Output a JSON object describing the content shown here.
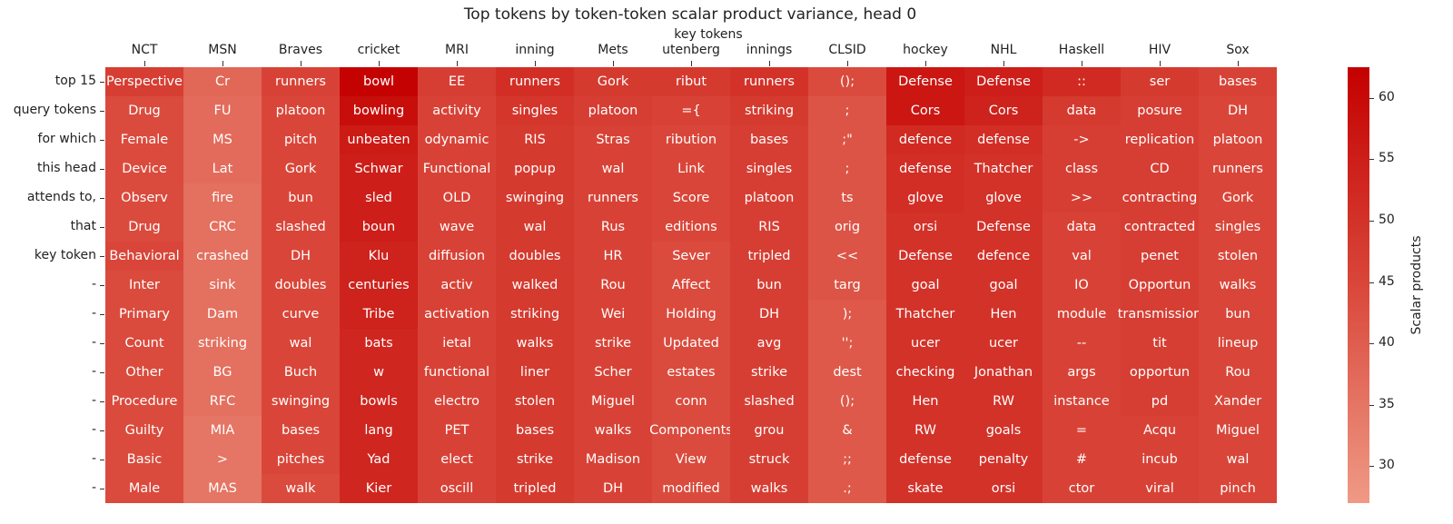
{
  "chart_data": {
    "type": "heatmap",
    "title": "Top tokens by token-token scalar product variance, head 0",
    "xlabel": "key tokens",
    "ylabel_lines": [
      "top 15",
      "query tokens",
      "for which",
      "this head",
      "attends to,",
      "that",
      "key token",
      "-",
      "-",
      "-",
      "-",
      "-",
      "-",
      "-",
      "-"
    ],
    "columns": [
      "NCT",
      "MSN",
      "Braves",
      "cricket",
      "MRI",
      "inning",
      "Mets",
      "utenberg",
      "innings",
      "CLSID",
      "hockey",
      "NHL",
      "Haskell",
      "HIV",
      "Sox"
    ],
    "cells": [
      [
        "Perspective",
        "Drug",
        "Female",
        "Device",
        "Observ",
        "Drug",
        "Behavioral",
        "Inter",
        "Primary",
        "Count",
        "Other",
        "Procedure",
        "Guilty",
        "Basic",
        "Male"
      ],
      [
        "Cr",
        "FU",
        "MS",
        "Lat",
        "fire",
        "CRC",
        "crashed",
        "sink",
        "Dam",
        "striking",
        "BG",
        "RFC",
        "MIA",
        ">",
        "MAS"
      ],
      [
        "runners",
        "platoon",
        "pitch",
        "Gork",
        "bun",
        "slashed",
        "DH",
        "doubles",
        "curve",
        "wal",
        "Buch",
        "swinging",
        "bases",
        "pitches",
        "walk"
      ],
      [
        "bowl",
        "bowling",
        "unbeaten",
        "Schwar",
        "sled",
        "boun",
        "Klu",
        "centuries",
        "Tribe",
        "bats",
        "w",
        "bowls",
        "lang",
        "Yad",
        "Kier"
      ],
      [
        "EE",
        "activity",
        "odynamic",
        "Functional",
        "OLD",
        "wave",
        "diffusion",
        "activ",
        "activation",
        "ietal",
        "functional",
        "electro",
        "PET",
        "elect",
        "oscill"
      ],
      [
        "runners",
        "singles",
        "RIS",
        "popup",
        "swinging",
        "wal",
        "doubles",
        "walked",
        "striking",
        "walks",
        "liner",
        "stolen",
        "bases",
        "strike",
        "tripled"
      ],
      [
        "Gork",
        "platoon",
        "Stras",
        "wal",
        "runners",
        "Rus",
        "HR",
        "Rou",
        "Wei",
        "strike",
        "Scher",
        "Miguel",
        "walks",
        "Madison",
        "DH"
      ],
      [
        "ribut",
        "={",
        "ribution",
        "Link",
        "Score",
        "editions",
        "Sever",
        "Affect",
        "Holding",
        "Updated",
        "estates",
        "conn",
        "Components",
        "View",
        "modified"
      ],
      [
        "runners",
        "striking",
        "bases",
        "singles",
        "platoon",
        "RIS",
        "tripled",
        "bun",
        "DH",
        "avg",
        "strike",
        "slashed",
        "grou",
        "struck",
        "walks"
      ],
      [
        "();",
        ";",
        ";\"",
        ";",
        "ts",
        "orig",
        "<<",
        "targ",
        ");",
        "'';",
        "dest",
        "();",
        "&",
        ";;",
        ".;"
      ],
      [
        "Defense",
        "Cors",
        "defence",
        "defense",
        "glove",
        "orsi",
        "Defense",
        "goal",
        "Thatcher",
        "ucer",
        "checking",
        "Hen",
        "RW",
        "defense",
        "skate"
      ],
      [
        "Defense",
        "Cors",
        "defense",
        "Thatcher",
        "glove",
        "Defense",
        "defence",
        "goal",
        "Hen",
        "ucer",
        "Jonathan",
        "RW",
        "goals",
        "penalty",
        "orsi"
      ],
      [
        "::",
        "data",
        "->",
        "class",
        ">>",
        "data",
        "val",
        "IO",
        "module",
        "--",
        "args",
        "instance",
        "=",
        "#",
        "ctor"
      ],
      [
        "ser",
        "posure",
        "replication",
        "CD",
        "contracting",
        "contracted",
        "penet",
        "Opportun",
        "transmission",
        "tit",
        "opportun",
        "pd",
        "Acqu",
        "incub",
        "viral"
      ],
      [
        "bases",
        "DH",
        "platoon",
        "runners",
        "Gork",
        "singles",
        "stolen",
        "walks",
        "bun",
        "lineup",
        "Rou",
        "Xander",
        "Miguel",
        "wal",
        "pinch"
      ]
    ],
    "values": [
      [
        47,
        44,
        44,
        44,
        44,
        44,
        45,
        44,
        44,
        44,
        44,
        44,
        44,
        44,
        44
      ],
      [
        38,
        37,
        37,
        37,
        36,
        36,
        36,
        36,
        36,
        36,
        36,
        36,
        35,
        35,
        35
      ],
      [
        46,
        45,
        45,
        45,
        45,
        45,
        45,
        45,
        45,
        45,
        45,
        45,
        45,
        45,
        44
      ],
      [
        62,
        59,
        56,
        55,
        55,
        55,
        54,
        54,
        54,
        53,
        53,
        53,
        53,
        53,
        53
      ],
      [
        47,
        46,
        46,
        46,
        46,
        46,
        46,
        46,
        46,
        46,
        46,
        46,
        46,
        46,
        46
      ],
      [
        51,
        49,
        48,
        48,
        48,
        48,
        48,
        48,
        48,
        48,
        48,
        48,
        48,
        48,
        48
      ],
      [
        48,
        47,
        46,
        46,
        46,
        46,
        46,
        46,
        46,
        46,
        46,
        46,
        46,
        46,
        46
      ],
      [
        48,
        46,
        45,
        45,
        45,
        45,
        44,
        44,
        44,
        44,
        44,
        44,
        44,
        44,
        44
      ],
      [
        50,
        48,
        47,
        47,
        47,
        47,
        47,
        47,
        47,
        47,
        47,
        47,
        47,
        47,
        47
      ],
      [
        44,
        42,
        42,
        42,
        42,
        42,
        42,
        42,
        41,
        41,
        41,
        41,
        41,
        41,
        41
      ],
      [
        57,
        57,
        52,
        51,
        51,
        50,
        50,
        50,
        50,
        50,
        50,
        50,
        50,
        50,
        50
      ],
      [
        55,
        54,
        51,
        50,
        50,
        50,
        50,
        50,
        50,
        50,
        50,
        50,
        50,
        50,
        50
      ],
      [
        52,
        48,
        47,
        47,
        47,
        46,
        46,
        46,
        46,
        46,
        46,
        46,
        46,
        46,
        46
      ],
      [
        48,
        47,
        47,
        47,
        47,
        47,
        47,
        47,
        47,
        47,
        47,
        47,
        46,
        46,
        46
      ],
      [
        46,
        45,
        45,
        45,
        45,
        45,
        45,
        45,
        45,
        45,
        45,
        45,
        45,
        45,
        45
      ]
    ],
    "colorbar": {
      "label": "Scalar products",
      "ticks": [
        30,
        35,
        40,
        45,
        50,
        55,
        60
      ],
      "min": 27,
      "max": 62.5,
      "low_color": "#ef9a86",
      "mid_color": "#d9473a",
      "high_color": "#c40000"
    }
  }
}
